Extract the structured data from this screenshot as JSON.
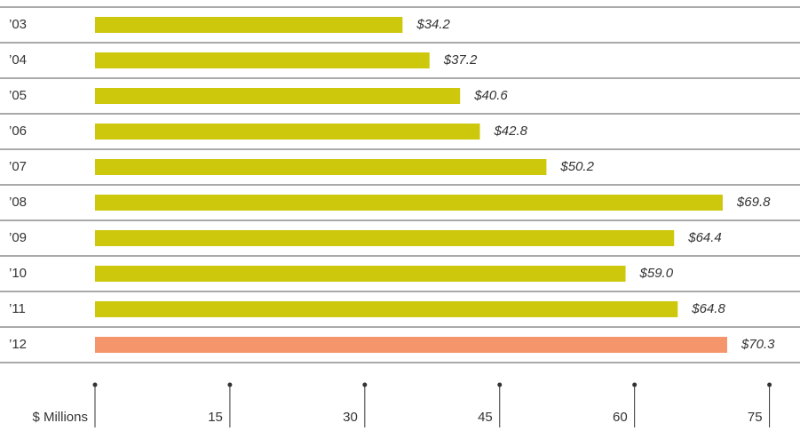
{
  "chart_data": {
    "type": "bar",
    "orientation": "horizontal",
    "categories": [
      "’03",
      "’04",
      "’05",
      "’06",
      "’07",
      "’08",
      "’09",
      "’10",
      "’11",
      "’12"
    ],
    "values": [
      34.2,
      37.2,
      40.6,
      42.8,
      50.2,
      69.8,
      64.4,
      59.0,
      64.8,
      70.3
    ],
    "value_labels": [
      "$34.2",
      "$37.2",
      "$40.6",
      "$42.8",
      "$50.2",
      "$69.8",
      "$64.4",
      "$59.0",
      "$64.8",
      "$70.3"
    ],
    "colors": [
      "#cdc80c",
      "#cdc80c",
      "#cdc80c",
      "#cdc80c",
      "#cdc80c",
      "#cdc80c",
      "#cdc80c",
      "#cdc80c",
      "#cdc80c",
      "#f5956b"
    ],
    "xlim": [
      0,
      78.2
    ],
    "xticks": [
      {
        "value": 0,
        "label": "$ Millions"
      },
      15,
      30,
      45,
      60,
      75
    ]
  }
}
